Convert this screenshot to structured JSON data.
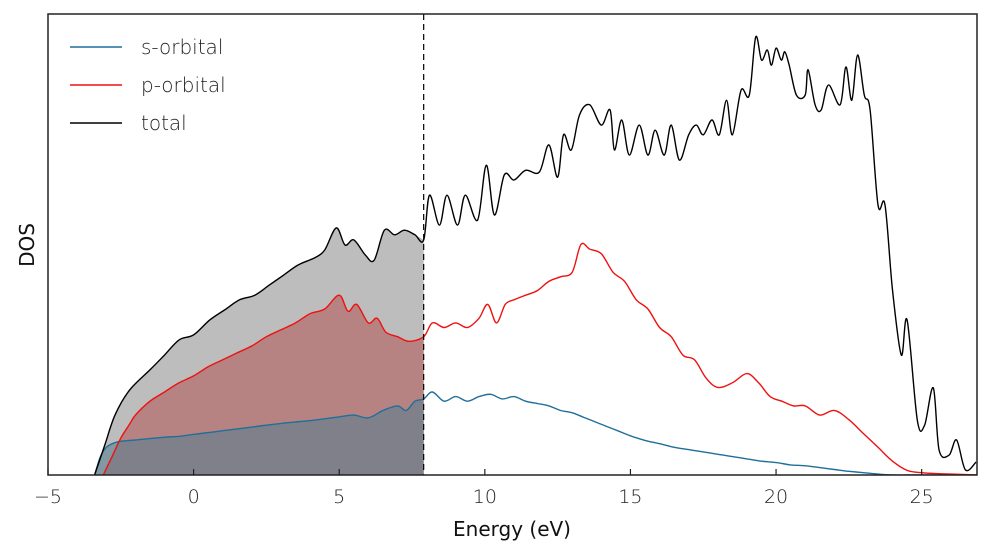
{
  "chart_data": {
    "type": "line",
    "title": "",
    "xlabel": "Energy (eV)",
    "ylabel": "DOS",
    "xlim": [
      -5,
      26.9
    ],
    "ylim": [
      0,
      1.0
    ],
    "xticks": [
      -5,
      0,
      5,
      10,
      15,
      20,
      25
    ],
    "xtick_labels": [
      "−5",
      "0",
      "5",
      "10",
      "15",
      "20",
      "25"
    ],
    "yticks": [],
    "grid": false,
    "legend_position": "top-left",
    "fermi_level": 7.9,
    "fill_below_fermi": true,
    "series": [
      {
        "name": "s-orbital",
        "color": "#1f6f9a",
        "fill_color": "#5a7f8f",
        "x": [
          -3.4,
          -3.2,
          -3.0,
          -2.8,
          -2.6,
          -2.4,
          -2.0,
          -1.5,
          -1.0,
          -0.5,
          0.0,
          0.5,
          1.0,
          1.5,
          2.0,
          2.5,
          3.0,
          3.5,
          4.0,
          4.5,
          5.0,
          5.5,
          6.0,
          6.5,
          7.0,
          7.3,
          7.6,
          7.9,
          8.2,
          8.6,
          9.0,
          9.4,
          9.8,
          10.2,
          10.6,
          11.0,
          11.4,
          11.8,
          12.2,
          12.6,
          13.0,
          13.4,
          13.8,
          14.2,
          14.6,
          15.0,
          15.5,
          16.0,
          16.5,
          17.0,
          17.5,
          18.0,
          18.5,
          19.0,
          19.5,
          20.0,
          20.5,
          21.0,
          21.5,
          22.0,
          22.5,
          23.0,
          23.5,
          24.0,
          24.5,
          25.0,
          26.0,
          26.9
        ],
        "y": [
          0.0,
          0.04,
          0.06,
          0.068,
          0.072,
          0.074,
          0.076,
          0.079,
          0.082,
          0.084,
          0.088,
          0.092,
          0.096,
          0.1,
          0.104,
          0.108,
          0.112,
          0.115,
          0.118,
          0.122,
          0.126,
          0.13,
          0.124,
          0.14,
          0.15,
          0.14,
          0.16,
          0.165,
          0.18,
          0.16,
          0.17,
          0.16,
          0.17,
          0.175,
          0.165,
          0.17,
          0.16,
          0.155,
          0.15,
          0.14,
          0.135,
          0.125,
          0.115,
          0.105,
          0.095,
          0.085,
          0.075,
          0.068,
          0.06,
          0.055,
          0.05,
          0.045,
          0.04,
          0.035,
          0.03,
          0.027,
          0.022,
          0.02,
          0.016,
          0.012,
          0.008,
          0.005,
          0.002,
          0.0,
          0.0,
          0.0,
          0.0,
          0.0
        ]
      },
      {
        "name": "p-orbital",
        "color": "#ee1111",
        "fill_color": "#b5706f",
        "x": [
          -3.1,
          -2.8,
          -2.5,
          -2.2,
          -2.0,
          -1.5,
          -1.0,
          -0.5,
          0.0,
          0.5,
          1.0,
          1.5,
          2.0,
          2.5,
          3.0,
          3.5,
          4.0,
          4.5,
          5.0,
          5.3,
          5.6,
          6.0,
          6.3,
          6.6,
          7.0,
          7.4,
          7.9,
          8.2,
          8.6,
          9.0,
          9.4,
          9.8,
          10.1,
          10.4,
          10.7,
          11.0,
          11.4,
          11.8,
          12.2,
          12.6,
          13.0,
          13.3,
          13.6,
          14.0,
          14.4,
          14.8,
          15.2,
          15.6,
          16.0,
          16.4,
          16.8,
          17.2,
          17.6,
          18.0,
          18.5,
          19.0,
          19.4,
          19.8,
          20.2,
          20.6,
          21.0,
          21.5,
          22.0,
          22.5,
          23.0,
          23.5,
          24.0,
          24.5,
          25.0,
          25.5,
          26.0,
          26.9
        ],
        "y": [
          0.0,
          0.04,
          0.08,
          0.11,
          0.13,
          0.16,
          0.18,
          0.2,
          0.215,
          0.235,
          0.25,
          0.265,
          0.28,
          0.3,
          0.315,
          0.33,
          0.35,
          0.36,
          0.39,
          0.355,
          0.37,
          0.33,
          0.34,
          0.31,
          0.3,
          0.29,
          0.3,
          0.33,
          0.32,
          0.33,
          0.32,
          0.34,
          0.37,
          0.33,
          0.37,
          0.38,
          0.39,
          0.4,
          0.42,
          0.43,
          0.44,
          0.5,
          0.49,
          0.48,
          0.44,
          0.42,
          0.38,
          0.36,
          0.32,
          0.3,
          0.26,
          0.25,
          0.21,
          0.19,
          0.2,
          0.22,
          0.2,
          0.17,
          0.16,
          0.15,
          0.15,
          0.13,
          0.14,
          0.12,
          0.09,
          0.06,
          0.03,
          0.01,
          0.005,
          0.003,
          0.002,
          0.0
        ]
      },
      {
        "name": "total",
        "color": "#000000",
        "fill_color": "#bdbdbd",
        "x": [
          -3.4,
          -3.05,
          -2.7,
          -2.2,
          -1.5,
          -1.0,
          -0.5,
          0.0,
          0.55,
          1.06,
          1.58,
          2.1,
          2.6,
          3.1,
          3.6,
          4.15,
          4.5,
          4.9,
          5.2,
          5.5,
          5.9,
          6.2,
          6.55,
          6.9,
          7.24,
          7.6,
          7.9,
          8.1,
          8.44,
          8.7,
          9.06,
          9.33,
          9.75,
          10.05,
          10.33,
          10.67,
          11.0,
          11.4,
          11.87,
          12.2,
          12.5,
          12.7,
          12.97,
          13.25,
          13.6,
          14.0,
          14.3,
          14.45,
          14.7,
          14.96,
          15.3,
          15.6,
          15.85,
          16.16,
          16.4,
          16.68,
          17.0,
          17.26,
          17.5,
          17.8,
          18.05,
          18.3,
          18.5,
          18.8,
          19.08,
          19.3,
          19.5,
          19.7,
          19.84,
          20.0,
          20.18,
          20.3,
          20.45,
          20.7,
          21.0,
          21.1,
          21.34,
          21.55,
          21.8,
          22.2,
          22.4,
          22.6,
          22.8,
          23.03,
          23.23,
          23.5,
          23.74,
          24.0,
          24.3,
          24.5,
          24.85,
          25.1,
          25.4,
          25.6,
          25.94,
          26.2,
          26.5,
          26.87
        ],
        "y": [
          0.0,
          0.065,
          0.13,
          0.184,
          0.228,
          0.26,
          0.293,
          0.304,
          0.336,
          0.358,
          0.38,
          0.39,
          0.412,
          0.434,
          0.456,
          0.471,
          0.488,
          0.536,
          0.499,
          0.51,
          0.477,
          0.466,
          0.531,
          0.521,
          0.531,
          0.521,
          0.51,
          0.607,
          0.542,
          0.607,
          0.542,
          0.607,
          0.553,
          0.672,
          0.564,
          0.651,
          0.64,
          0.661,
          0.657,
          0.716,
          0.646,
          0.738,
          0.705,
          0.781,
          0.803,
          0.759,
          0.792,
          0.705,
          0.77,
          0.694,
          0.759,
          0.694,
          0.748,
          0.694,
          0.759,
          0.683,
          0.738,
          0.759,
          0.738,
          0.77,
          0.738,
          0.813,
          0.738,
          0.835,
          0.824,
          0.95,
          0.9,
          0.922,
          0.889,
          0.926,
          0.9,
          0.918,
          0.889,
          0.824,
          0.824,
          0.879,
          0.803,
          0.792,
          0.846,
          0.803,
          0.885,
          0.813,
          0.911,
          0.824,
          0.792,
          0.586,
          0.586,
          0.401,
          0.26,
          0.336,
          0.119,
          0.108,
          0.189,
          0.054,
          0.043,
          0.076,
          0.011,
          0.028
        ]
      }
    ]
  }
}
